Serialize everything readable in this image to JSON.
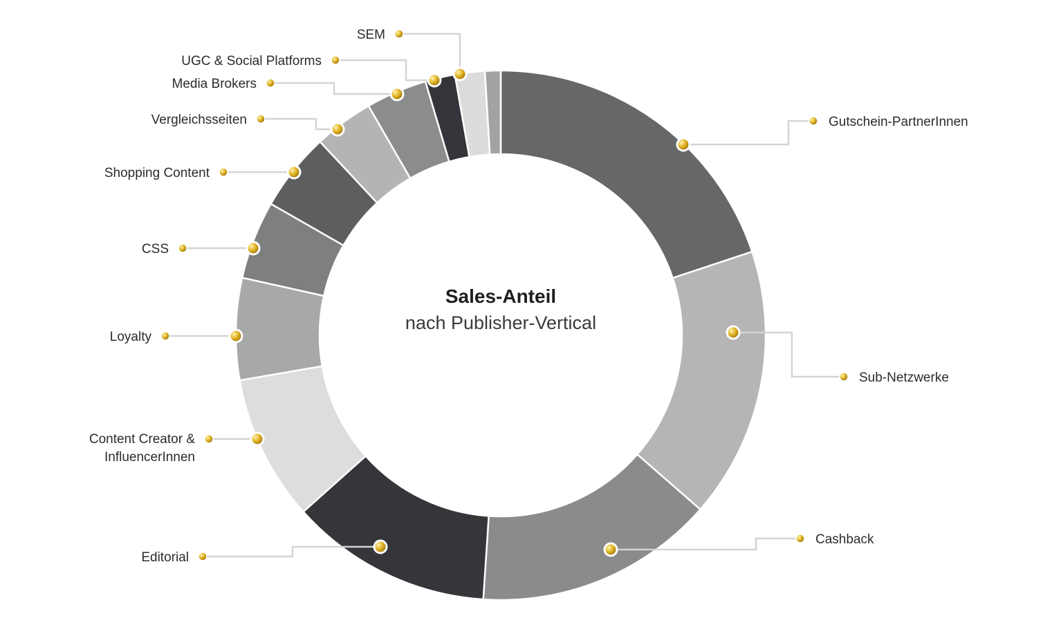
{
  "chart_data": {
    "type": "donut",
    "title": "Sales-Anteil",
    "subtitle": "nach Publisher-Vertical",
    "unit": "%",
    "segments": [
      {
        "label": "Gutschein-PartnerInnen",
        "value": 20.8,
        "color": "#666769"
      },
      {
        "label": "Sub-Netzwerke",
        "value": 17.3,
        "color": "#b5b5b5"
      },
      {
        "label": "Cashback",
        "value": 15.3,
        "color": "#8a8b8c"
      },
      {
        "label": "Editorial",
        "value": 12.9,
        "color": "#35363a"
      },
      {
        "label": "Content Creator & InfluencerInnen",
        "label_lines": [
          "Content Creator &",
          "InfluencerInnen"
        ],
        "value": 9.3,
        "color": "#dddddd"
      },
      {
        "label": "Loyalty",
        "value": 6.5,
        "color": "#a8a8a8"
      },
      {
        "label": "CSS",
        "value": 5.0,
        "color": "#7e7f81"
      },
      {
        "label": "Shopping Content",
        "value": 5.0,
        "color": "#5d5e60"
      },
      {
        "label": "Vergleichsseiten",
        "value": 3.8,
        "color": "#b4b4b4"
      },
      {
        "label": "Media Brokers",
        "value": 3.9,
        "color": "#8c8c8d"
      },
      {
        "label": "UGC & Social Platforms",
        "value": 1.9,
        "color": "#34353a"
      },
      {
        "label": "SEM",
        "value": 1.9,
        "color": "#dcdcdc"
      },
      {
        "label": "(no label)",
        "value": 1.0,
        "color": "#a2a2a2"
      }
    ]
  },
  "colors": {
    "background": "#ffffff",
    "leader_line": "#d4d4d4",
    "marker_gold": "#c99a16",
    "segment_border": "#ffffff"
  }
}
